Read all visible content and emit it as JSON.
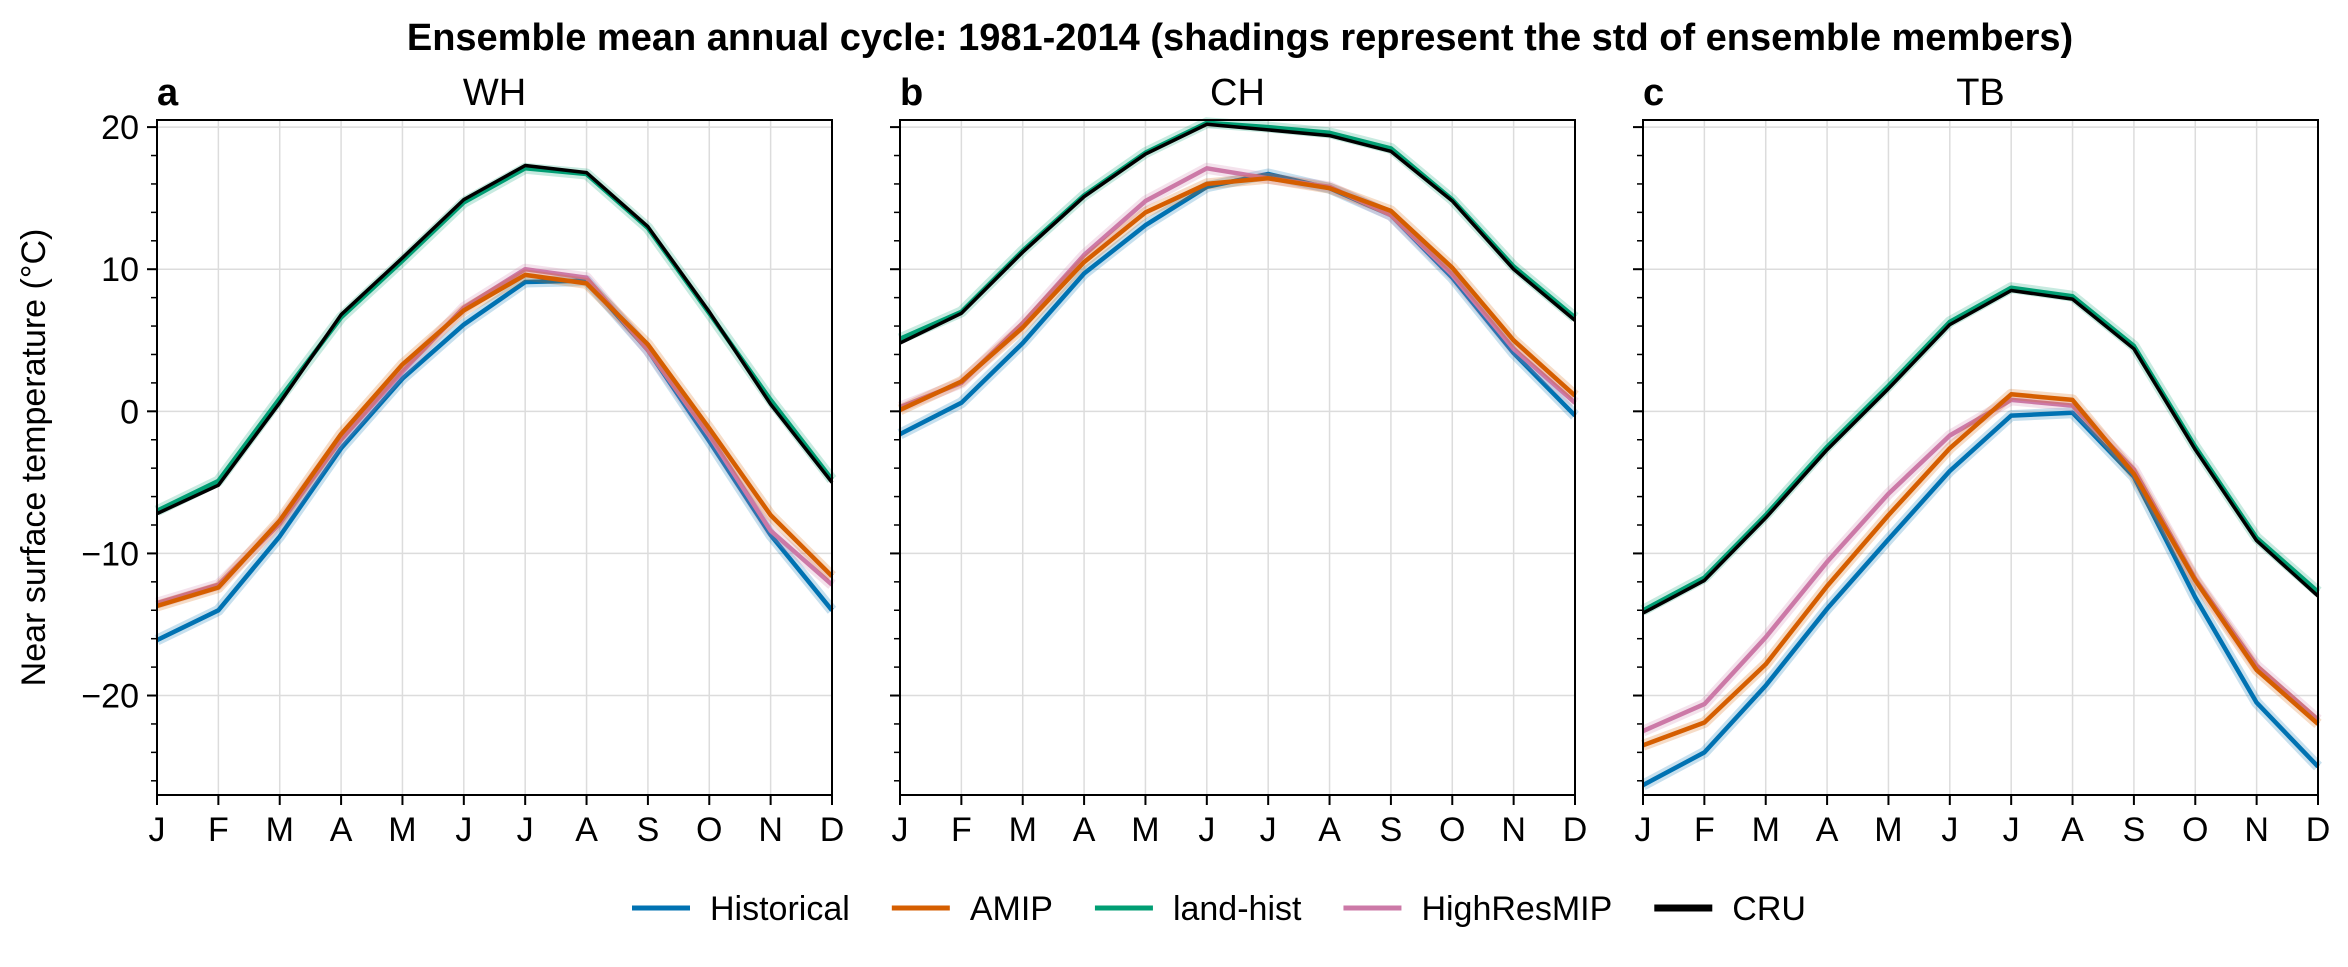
{
  "figure": {
    "title": "Ensemble mean annual cycle: 1981-2014 (shadings represent the std of ensemble members)"
  },
  "colors": {
    "Historical": "#0072b2",
    "AMIP": "#d55e00",
    "land-hist": "#009e73",
    "HighResMIP": "#cc79a7",
    "CRU": "#000000"
  },
  "chart_data": [
    {
      "type": "line",
      "panel_label": "a",
      "title": "WH",
      "xlabel": "",
      "ylabel": "Near surface temperature (°C)",
      "categories": [
        "J",
        "F",
        "M",
        "A",
        "M",
        "J",
        "J",
        "A",
        "S",
        "O",
        "N",
        "D"
      ],
      "ylim": [
        -27,
        20.5
      ],
      "yticks": [
        20,
        10,
        0,
        -10,
        -20
      ],
      "grid": true,
      "series": [
        {
          "name": "Historical",
          "values": [
            -16.1,
            -14.0,
            -8.8,
            -2.6,
            2.3,
            6.1,
            9.1,
            9.2,
            4.3,
            -2.1,
            -8.7,
            -14.0
          ]
        },
        {
          "name": "AMIP",
          "values": [
            -13.7,
            -12.4,
            -7.7,
            -1.6,
            3.3,
            7.1,
            9.6,
            9.0,
            4.7,
            -1.2,
            -7.3,
            -11.6
          ]
        },
        {
          "name": "land-hist",
          "values": [
            -7.0,
            -4.9,
            0.9,
            6.6,
            10.6,
            14.7,
            17.1,
            16.7,
            12.9,
            6.9,
            0.8,
            -4.8
          ]
        },
        {
          "name": "HighResMIP",
          "values": [
            -13.5,
            -12.2,
            -7.9,
            -2.0,
            2.8,
            7.3,
            10.0,
            9.4,
            4.3,
            -1.7,
            -8.4,
            -12.2
          ]
        },
        {
          "name": "CRU",
          "values": [
            -7.2,
            -5.2,
            0.6,
            6.8,
            10.8,
            14.9,
            17.3,
            16.8,
            13.0,
            7.0,
            0.5,
            -5.0
          ]
        }
      ]
    },
    {
      "type": "line",
      "panel_label": "b",
      "title": "CH",
      "xlabel": "",
      "ylabel": "",
      "categories": [
        "J",
        "F",
        "M",
        "A",
        "M",
        "J",
        "J",
        "A",
        "S",
        "O",
        "N",
        "D"
      ],
      "ylim": [
        -27,
        20.5
      ],
      "yticks": [
        20,
        10,
        0,
        -10,
        -20
      ],
      "grid": true,
      "series": [
        {
          "name": "Historical",
          "values": [
            -1.6,
            0.6,
            4.8,
            9.7,
            13.1,
            15.8,
            16.7,
            15.7,
            13.8,
            9.4,
            4.1,
            -0.3
          ]
        },
        {
          "name": "AMIP",
          "values": [
            0.1,
            2.1,
            5.9,
            10.5,
            14.0,
            16.0,
            16.4,
            15.7,
            14.1,
            10.1,
            5.0,
            1.1
          ]
        },
        {
          "name": "land-hist",
          "values": [
            5.1,
            7.0,
            11.3,
            15.2,
            18.2,
            20.3,
            20.0,
            19.6,
            18.5,
            14.9,
            10.2,
            6.6
          ]
        },
        {
          "name": "HighResMIP",
          "values": [
            0.3,
            2.0,
            6.2,
            11.0,
            14.8,
            17.1,
            16.4,
            15.8,
            13.8,
            9.6,
            4.4,
            0.6
          ]
        },
        {
          "name": "CRU",
          "values": [
            4.8,
            6.9,
            11.2,
            15.1,
            18.1,
            20.2,
            19.8,
            19.4,
            18.3,
            14.8,
            10.0,
            6.4
          ]
        }
      ]
    },
    {
      "type": "line",
      "panel_label": "c",
      "title": "TB",
      "xlabel": "",
      "ylabel": "",
      "categories": [
        "J",
        "F",
        "M",
        "A",
        "M",
        "J",
        "J",
        "A",
        "S",
        "O",
        "N",
        "D"
      ],
      "ylim": [
        -27,
        20.5
      ],
      "yticks": [
        20,
        10,
        0,
        -10,
        -20
      ],
      "grid": true,
      "series": [
        {
          "name": "Historical",
          "values": [
            -26.3,
            -24.0,
            -19.3,
            -13.9,
            -9.0,
            -4.2,
            -0.3,
            -0.1,
            -4.6,
            -13.1,
            -20.5,
            -25.0
          ]
        },
        {
          "name": "AMIP",
          "values": [
            -23.5,
            -21.9,
            -17.8,
            -12.3,
            -7.3,
            -2.6,
            1.2,
            0.8,
            -4.4,
            -11.9,
            -18.2,
            -22.0
          ]
        },
        {
          "name": "land-hist",
          "values": [
            -14.0,
            -11.7,
            -7.3,
            -2.5,
            1.8,
            6.3,
            8.7,
            8.1,
            4.6,
            -2.5,
            -8.9,
            -12.7
          ]
        },
        {
          "name": "HighResMIP",
          "values": [
            -22.5,
            -20.6,
            -15.9,
            -10.6,
            -5.8,
            -1.7,
            0.8,
            0.4,
            -4.1,
            -11.8,
            -17.9,
            -21.7
          ]
        },
        {
          "name": "CRU",
          "values": [
            -14.2,
            -11.9,
            -7.5,
            -2.7,
            1.6,
            6.1,
            8.5,
            7.9,
            4.4,
            -2.7,
            -9.1,
            -13.0
          ]
        }
      ]
    }
  ],
  "legend": {
    "placement": "bottom-center",
    "items": [
      "Historical",
      "AMIP",
      "land-hist",
      "HighResMIP",
      "CRU"
    ]
  }
}
